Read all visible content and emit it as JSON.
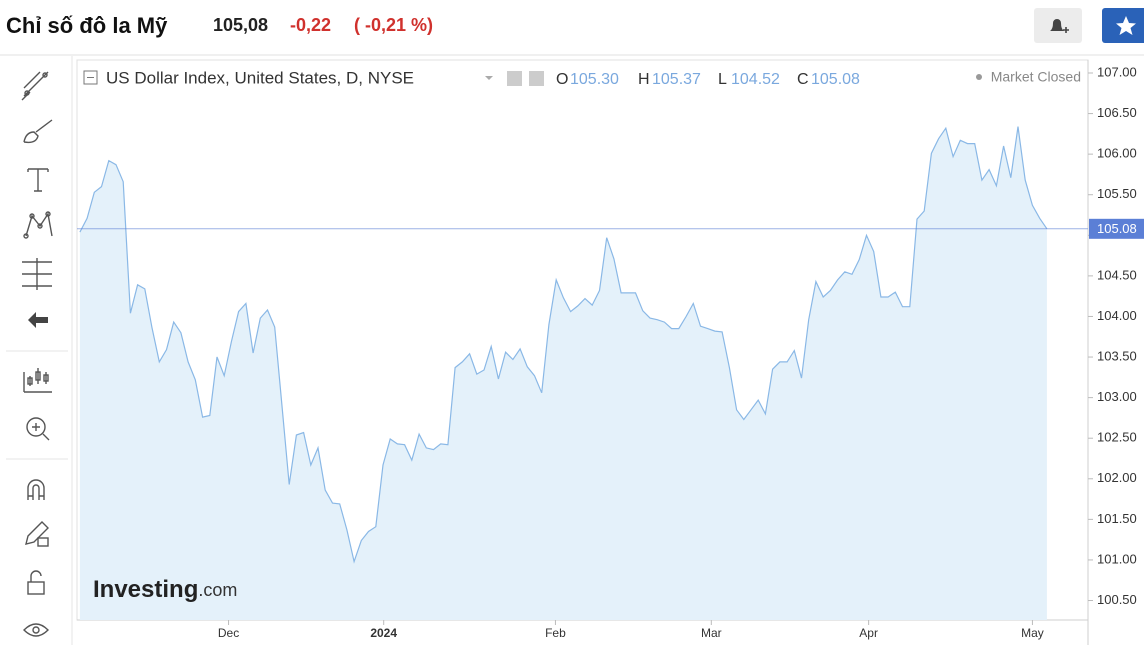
{
  "header": {
    "title": "Chỉ số đô la Mỹ",
    "price": "105,08",
    "change": "-0,22",
    "change_pct": "( -0,21 %)"
  },
  "legend": {
    "symbol": "US Dollar Index, United States, D, NYSE",
    "open_key": "O",
    "open": "105.30",
    "high_key": "H",
    "high": "105.37",
    "low_key": "L",
    "low": "104.52",
    "close_key": "C",
    "close": "105.08",
    "status": "Market Closed"
  },
  "watermark": {
    "brand": "Investing",
    "suffix": ".com"
  },
  "chart_data": {
    "type": "area",
    "color": "#8ab8e6",
    "fill": "#e4f1fa",
    "values": [
      105.04,
      105.21,
      105.53,
      105.6,
      105.92,
      105.87,
      105.66,
      104.04,
      104.39,
      104.34,
      103.86,
      103.44,
      103.59,
      103.93,
      103.8,
      103.44,
      103.22,
      102.76,
      102.78,
      103.5,
      103.27,
      103.69,
      104.06,
      104.16,
      103.55,
      103.98,
      104.08,
      103.87,
      102.91,
      101.93,
      102.54,
      102.57,
      102.17,
      102.38,
      101.86,
      101.7,
      101.69,
      101.37,
      100.98,
      101.24,
      101.35,
      101.41,
      102.17,
      102.49,
      102.43,
      102.42,
      102.23,
      102.55,
      102.38,
      102.36,
      102.43,
      102.42,
      103.37,
      103.44,
      103.54,
      103.29,
      103.34,
      103.63,
      103.23,
      103.56,
      103.47,
      103.6,
      103.38,
      103.27,
      103.06,
      103.9,
      104.45,
      104.23,
      104.06,
      104.13,
      104.22,
      104.14,
      104.32,
      104.97,
      104.71,
      104.29,
      104.29,
      104.29,
      104.07,
      103.98,
      103.96,
      103.93,
      103.85,
      103.85,
      104.0,
      104.16,
      103.88,
      103.85,
      103.82,
      103.81,
      103.37,
      102.85,
      102.73,
      102.85,
      102.97,
      102.8,
      103.35,
      103.44,
      103.44,
      103.58,
      103.24,
      103.96,
      104.43,
      104.24,
      104.32,
      104.45,
      104.55,
      104.52,
      104.7,
      105.0,
      104.8,
      104.24,
      104.24,
      104.3,
      104.12,
      104.12,
      105.2,
      105.3,
      106.01,
      106.19,
      106.32,
      105.97,
      106.17,
      106.13,
      106.13,
      105.68,
      105.81,
      105.61,
      106.1,
      105.71,
      106.34,
      105.68,
      105.37,
      105.21,
      105.08
    ],
    "xlim": [
      -0.4,
      139.7
    ],
    "xticks": [
      {
        "value": 20.6,
        "label": "Dec"
      },
      {
        "value": 42.1,
        "label": "2024"
      },
      {
        "value": 65.9,
        "label": "Feb"
      },
      {
        "value": 87.5,
        "label": "Mar"
      },
      {
        "value": 109.3,
        "label": "Apr"
      },
      {
        "value": 132,
        "label": "May"
      }
    ],
    "ylim": [
      100.26,
      107.16
    ],
    "yticks": [
      {
        "value": 107,
        "label": "107.00"
      },
      {
        "value": 106.5,
        "label": "106.50"
      },
      {
        "value": 106,
        "label": "106.00"
      },
      {
        "value": 105.5,
        "label": "105.50"
      },
      {
        "value": 105,
        "label": "105.00"
      },
      {
        "value": 104.5,
        "label": "104.50"
      },
      {
        "value": 104,
        "label": "104.00"
      },
      {
        "value": 103.5,
        "label": "103.50"
      },
      {
        "value": 103,
        "label": "103.00"
      },
      {
        "value": 102.5,
        "label": "102.50"
      },
      {
        "value": 102,
        "label": "102.00"
      },
      {
        "value": 101.5,
        "label": "101.50"
      },
      {
        "value": 101,
        "label": "101.00"
      },
      {
        "value": 100.5,
        "label": "100.50"
      }
    ],
    "price_line": {
      "value": 105.08,
      "label": "105.08",
      "color": "#5b7fd6"
    }
  }
}
